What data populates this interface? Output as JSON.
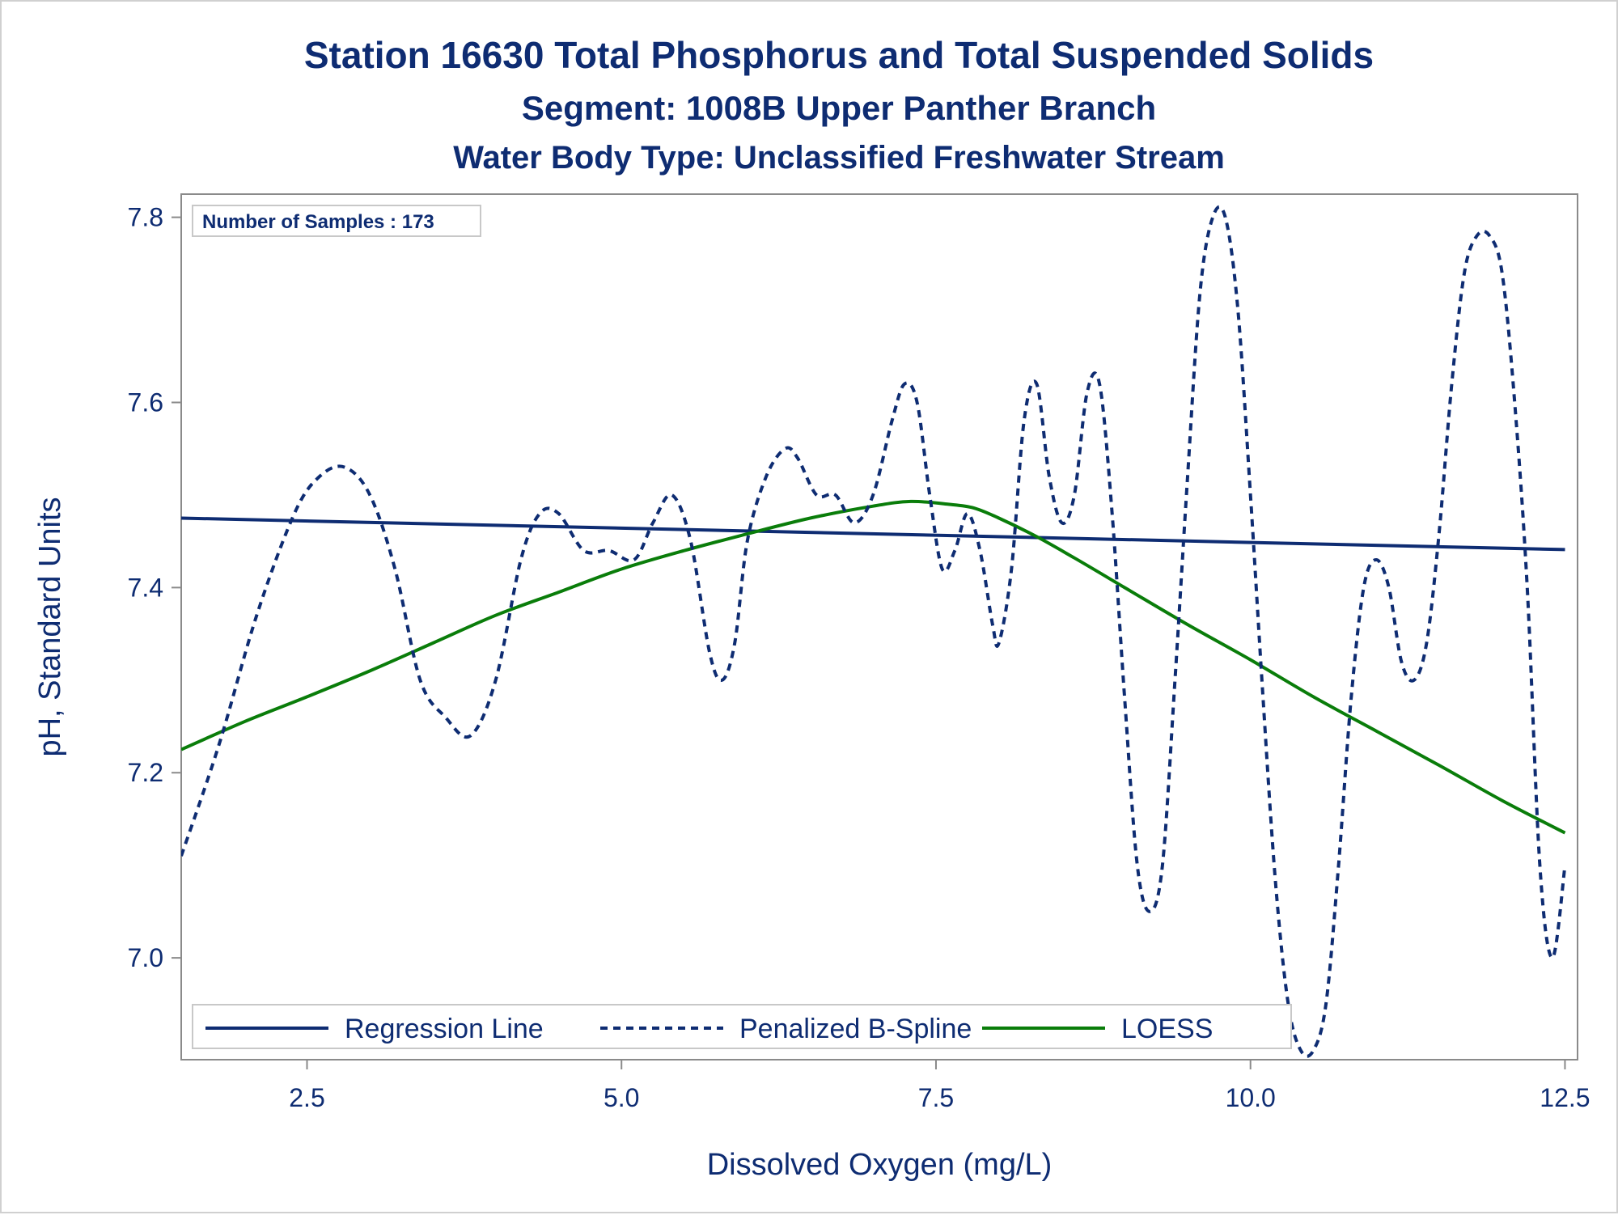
{
  "titles": {
    "line1": "Station 16630  Total Phosphorus and Total Suspended Solids",
    "line2": "Segment: 1008B  Upper Panther Branch",
    "line3": "Water Body Type: Unclassified Freshwater Stream"
  },
  "inset_text": "Number of Samples : 173",
  "colors": {
    "regression": "#0e2c72",
    "spline": "#0e2c72",
    "loess": "#0a7d0a",
    "text": "#0e2c72",
    "axis": "#8a8a8a"
  },
  "chart_data": {
    "type": "line",
    "xlabel": "Dissolved Oxygen (mg/L)",
    "ylabel": "pH, Standard Units",
    "xlim": [
      1.5,
      12.6
    ],
    "ylim": [
      6.89,
      7.825
    ],
    "xticks": [
      2.5,
      5.0,
      7.5,
      10.0,
      12.5
    ],
    "xtick_labels": [
      "2.5",
      "5.0",
      "7.5",
      "10.0",
      "12.5"
    ],
    "yticks": [
      7.0,
      7.2,
      7.4,
      7.6,
      7.8
    ],
    "ytick_labels": [
      "7.0",
      "7.2",
      "7.4",
      "7.6",
      "7.8"
    ],
    "legend_position": "bottom-left inside",
    "series": [
      {
        "name": "Regression Line",
        "style": "solid",
        "x": [
          1.5,
          12.5
        ],
        "y": [
          7.475,
          7.441
        ]
      },
      {
        "name": "Penalized B-Spline",
        "style": "dashed",
        "x": [
          1.5,
          1.8,
          2.1,
          2.4,
          2.6,
          2.8,
          3.0,
          3.2,
          3.4,
          3.6,
          3.8,
          4.0,
          4.2,
          4.35,
          4.5,
          4.7,
          4.9,
          5.1,
          5.25,
          5.4,
          5.55,
          5.7,
          5.8,
          5.9,
          6.0,
          6.15,
          6.3,
          6.4,
          6.55,
          6.7,
          6.85,
          7.0,
          7.15,
          7.25,
          7.35,
          7.45,
          7.55,
          7.65,
          7.75,
          7.85,
          7.95,
          8.0,
          8.1,
          8.2,
          8.3,
          8.4,
          8.5,
          8.6,
          8.7,
          8.8,
          8.9,
          9.0,
          9.1,
          9.2,
          9.3,
          9.4,
          9.5,
          9.6,
          9.7,
          9.8,
          9.9,
          10.0,
          10.1,
          10.2,
          10.3,
          10.4,
          10.5,
          10.6,
          10.7,
          10.8,
          10.9,
          11.0,
          11.1,
          11.2,
          11.3,
          11.4,
          11.5,
          11.6,
          11.7,
          11.8,
          11.9,
          12.0,
          12.1,
          12.2,
          12.3,
          12.4,
          12.5
        ],
        "y": [
          7.11,
          7.23,
          7.37,
          7.48,
          7.52,
          7.53,
          7.5,
          7.42,
          7.3,
          7.26,
          7.24,
          7.3,
          7.43,
          7.48,
          7.48,
          7.44,
          7.44,
          7.43,
          7.47,
          7.5,
          7.45,
          7.33,
          7.3,
          7.34,
          7.45,
          7.52,
          7.55,
          7.54,
          7.5,
          7.5,
          7.47,
          7.5,
          7.58,
          7.62,
          7.6,
          7.5,
          7.42,
          7.44,
          7.48,
          7.44,
          7.36,
          7.34,
          7.42,
          7.58,
          7.62,
          7.52,
          7.47,
          7.5,
          7.61,
          7.62,
          7.48,
          7.28,
          7.1,
          7.05,
          7.1,
          7.3,
          7.52,
          7.72,
          7.8,
          7.8,
          7.7,
          7.5,
          7.28,
          7.08,
          6.95,
          6.9,
          6.9,
          6.95,
          7.1,
          7.28,
          7.4,
          7.43,
          7.4,
          7.32,
          7.3,
          7.34,
          7.46,
          7.62,
          7.74,
          7.78,
          7.78,
          7.74,
          7.6,
          7.4,
          7.1,
          7.0,
          7.1
        ]
      },
      {
        "name": "LOESS",
        "style": "solid",
        "x": [
          1.5,
          2.0,
          2.5,
          3.0,
          3.5,
          4.0,
          4.5,
          5.0,
          5.5,
          6.0,
          6.5,
          7.0,
          7.3,
          7.6,
          7.8,
          8.0,
          8.3,
          8.6,
          9.0,
          9.5,
          10.0,
          10.5,
          11.0,
          11.5,
          12.0,
          12.5
        ],
        "y": [
          7.225,
          7.255,
          7.282,
          7.31,
          7.34,
          7.37,
          7.395,
          7.42,
          7.44,
          7.458,
          7.475,
          7.488,
          7.493,
          7.49,
          7.486,
          7.475,
          7.455,
          7.432,
          7.4,
          7.36,
          7.322,
          7.282,
          7.245,
          7.208,
          7.17,
          7.135
        ]
      }
    ]
  }
}
